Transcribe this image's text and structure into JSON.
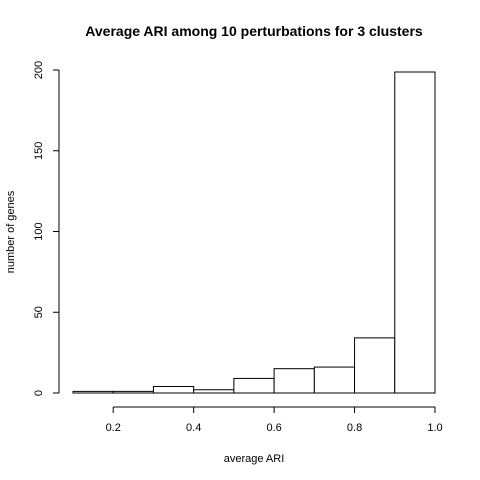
{
  "chart_data": {
    "type": "bar",
    "title": "Average ARI among 10 perturbations for 3 clusters",
    "xlabel": "average ARI",
    "ylabel": "number of genes",
    "bins": [
      {
        "from": 0.1,
        "to": 0.2,
        "count": 1
      },
      {
        "from": 0.2,
        "to": 0.3,
        "count": 1
      },
      {
        "from": 0.3,
        "to": 0.4,
        "count": 4
      },
      {
        "from": 0.4,
        "to": 0.5,
        "count": 2
      },
      {
        "from": 0.5,
        "to": 0.6,
        "count": 9
      },
      {
        "from": 0.6,
        "to": 0.7,
        "count": 15
      },
      {
        "from": 0.7,
        "to": 0.8,
        "count": 16
      },
      {
        "from": 0.8,
        "to": 0.9,
        "count": 34
      },
      {
        "from": 0.9,
        "to": 1.0,
        "count": 198
      }
    ],
    "xlim": [
      0.1,
      1.0
    ],
    "ylim": [
      0,
      198
    ],
    "x_ticks": [
      "0.2",
      "0.4",
      "0.6",
      "0.8",
      "1.0"
    ],
    "y_ticks": [
      "0",
      "50",
      "100",
      "150",
      "200"
    ],
    "grid": false,
    "bar_fill": "#ffffff",
    "bar_stroke": "#000000"
  }
}
